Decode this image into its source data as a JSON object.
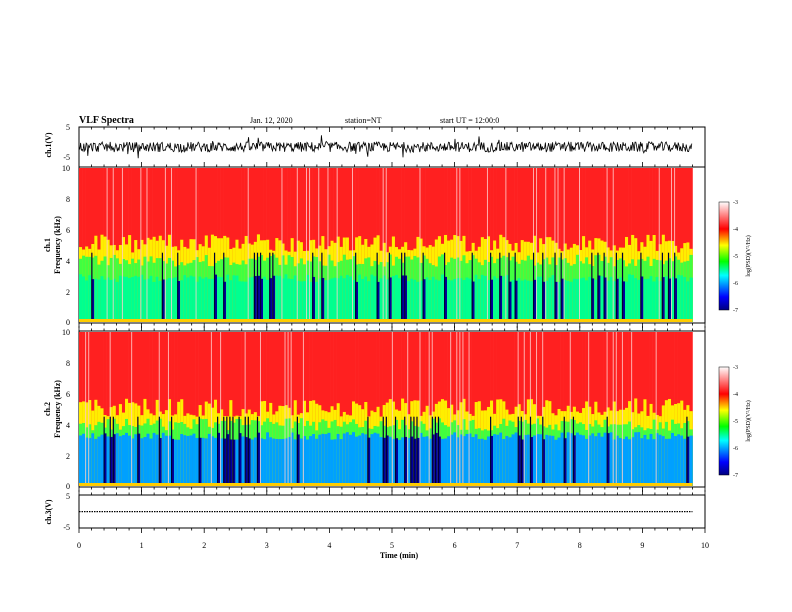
{
  "header": {
    "title": "VLF Spectra",
    "date": "Jan. 12, 2020",
    "station": "station=NT",
    "start": "start UT = 12:00:0"
  },
  "chart_data": {
    "type": "heatmap",
    "xlabel": "Time (min)",
    "xlim": [
      0,
      10
    ],
    "x_ticks": [
      "0",
      "1",
      "2",
      "3",
      "4",
      "5",
      "6",
      "7",
      "8",
      "9",
      "10"
    ],
    "panels": [
      {
        "id": "ch1-waveform",
        "kind": "line",
        "ylabel": "ch.1(V)",
        "ylim": [
          -5,
          5
        ],
        "y_ticks": [
          "5",
          "-5"
        ]
      },
      {
        "id": "ch1-spectrogram",
        "kind": "heatmap",
        "ylabel": "ch.1\nFrequency (kHz)",
        "ylim": [
          0,
          10
        ],
        "y_ticks": [
          "10",
          "8",
          "6",
          "4",
          "2",
          "0"
        ],
        "colorbar": {
          "label": "log(PSD)(V²/Hz)",
          "range": [
            -7,
            -3
          ],
          "ticks": [
            "-3",
            "-4",
            "-5",
            "-6",
            "-7"
          ]
        }
      },
      {
        "id": "ch2-spectrogram",
        "kind": "heatmap",
        "ylabel": "ch.2\nFrequency (kHz)",
        "ylim": [
          0,
          10
        ],
        "y_ticks": [
          "10",
          "8",
          "6",
          "4",
          "2",
          "0"
        ],
        "colorbar": {
          "label": "log(PSD)(V²/Hz)",
          "range": [
            -7,
            -3
          ],
          "ticks": [
            "-3",
            "-4",
            "-5",
            "-6",
            "-7"
          ]
        }
      },
      {
        "id": "ch3-waveform",
        "kind": "line",
        "ylabel": "ch.3(V)",
        "ylim": [
          -5,
          5
        ],
        "y_ticks": [
          "5",
          "-5"
        ]
      }
    ],
    "data_end_min": 9.8,
    "colormap": [
      "#000080",
      "#0000ff",
      "#00ffff",
      "#00ff00",
      "#ffff00",
      "#ff0000",
      "#ffffff"
    ]
  }
}
